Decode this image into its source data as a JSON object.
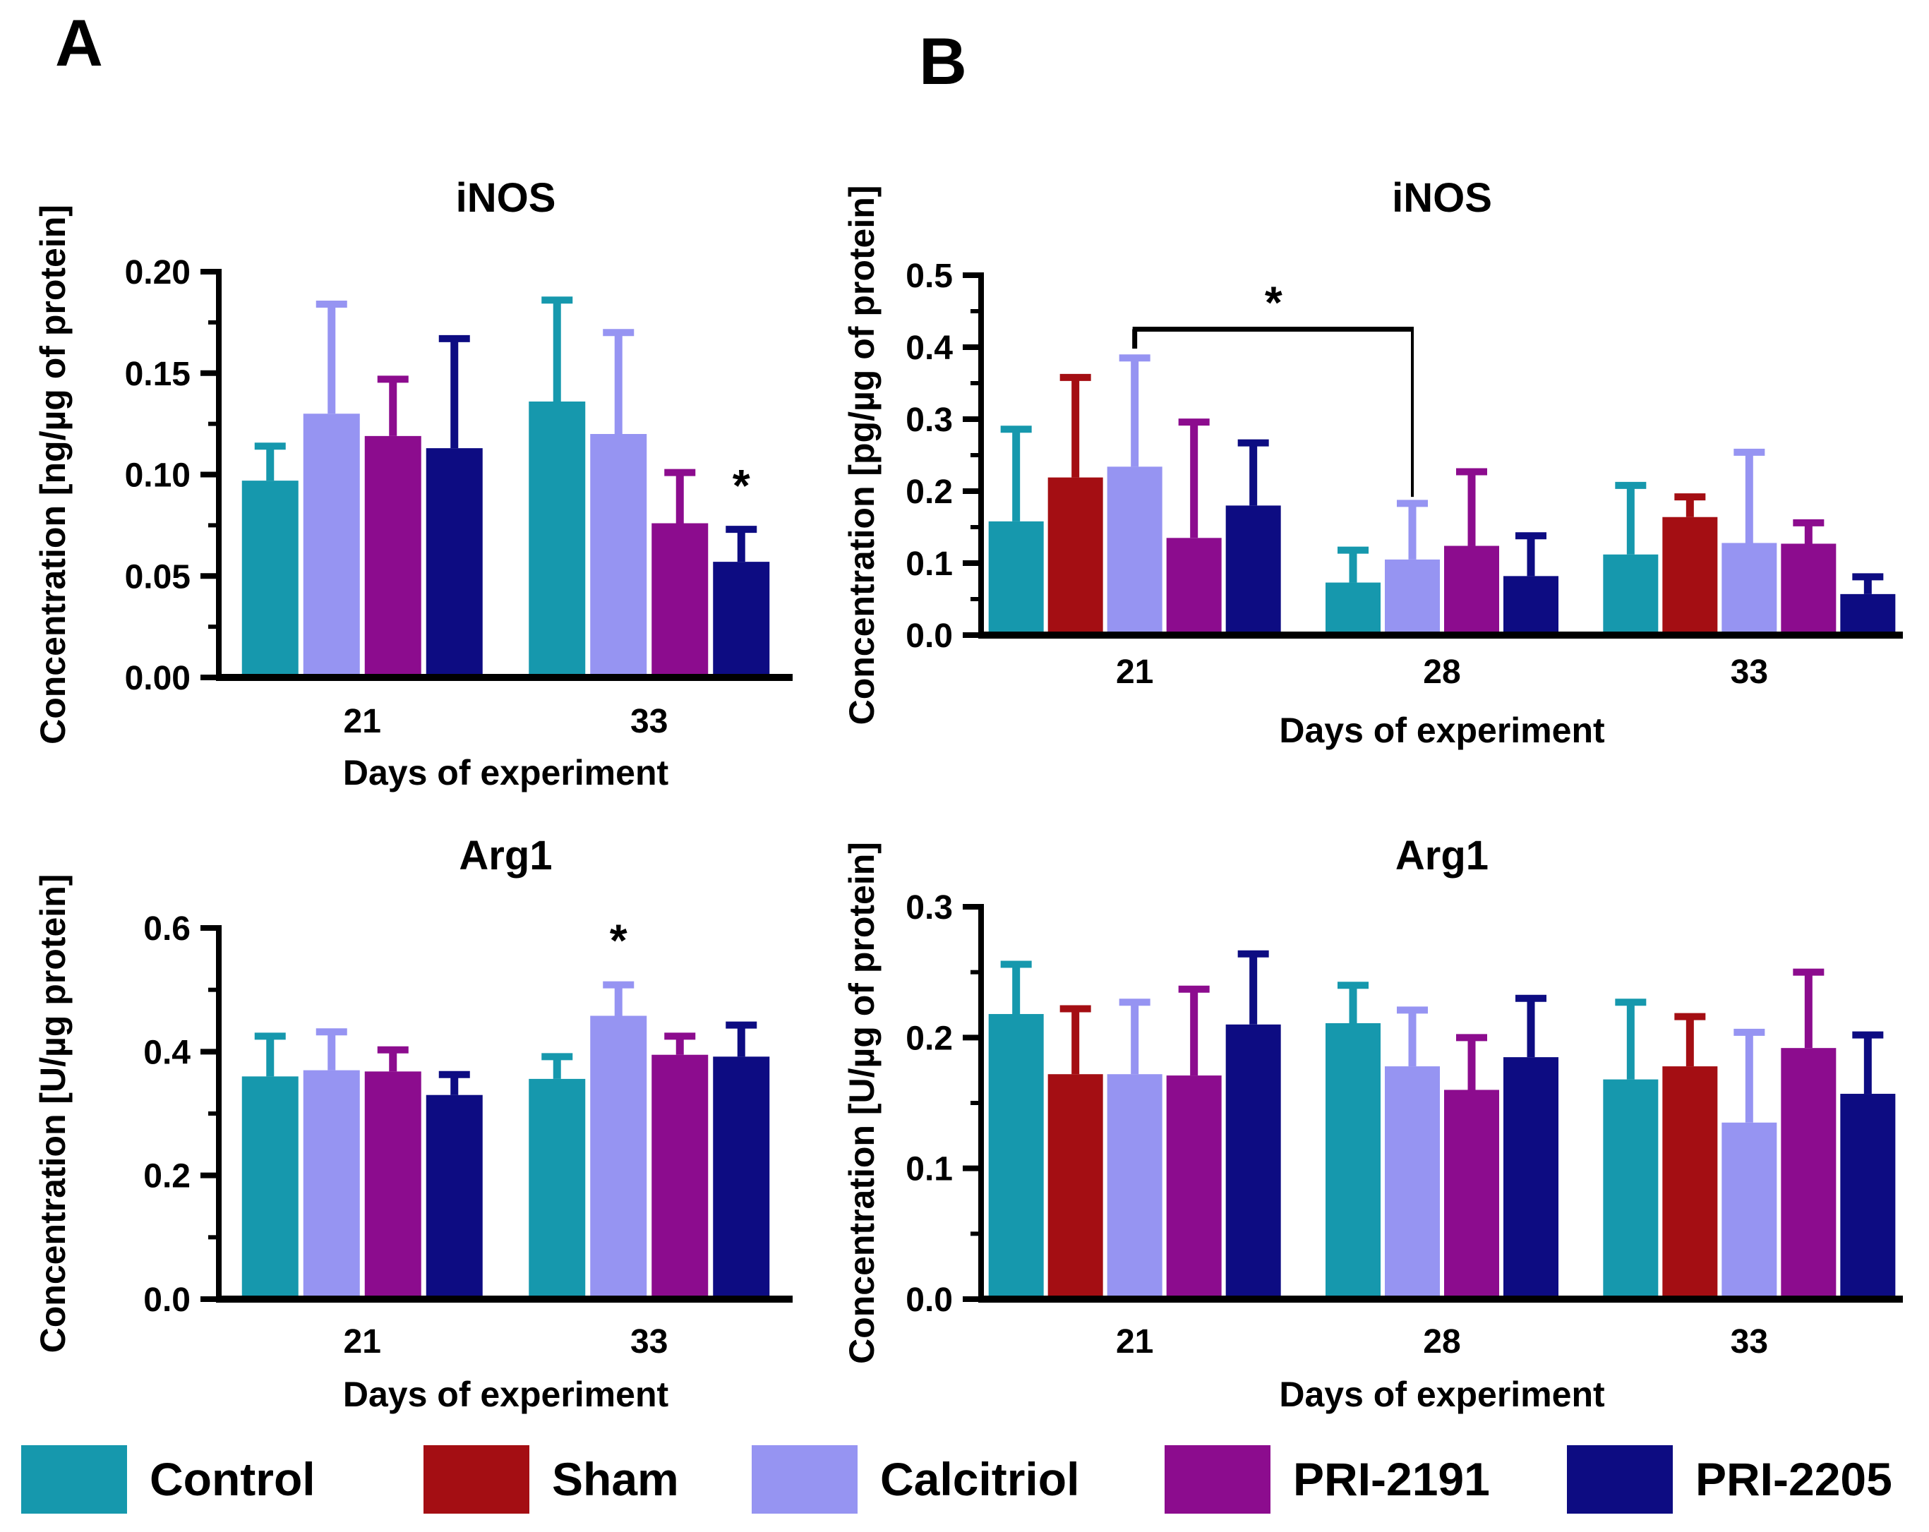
{
  "panel_labels": {
    "a": "A",
    "b": "B"
  },
  "legend": {
    "items": [
      {
        "name": "Control",
        "color": "#1698AD"
      },
      {
        "name": "Sham",
        "color": "#A40E13"
      },
      {
        "name": "Calcitriol",
        "color": "#9694F2"
      },
      {
        "name": "PRI-2191",
        "color": "#8C0C8E"
      },
      {
        "name": "PRI-2205",
        "color": "#0D0C82"
      }
    ]
  },
  "chart_data": [
    {
      "id": "a-inos",
      "panel": "A",
      "type": "bar",
      "title": "iNOS",
      "ylabel": "Concentration [ng/µg of protein]",
      "xlabel": "Days of experiment",
      "categories": [
        "21",
        "33"
      ],
      "ylim": [
        0,
        0.2
      ],
      "yticks": [
        0,
        0.05,
        0.1,
        0.15,
        0.2
      ],
      "ytick_decimals": 2,
      "minor_ticks": true,
      "grid": false,
      "legend_position": "figure-bottom",
      "series": [
        {
          "name": "Control",
          "values": [
            0.097,
            0.136
          ],
          "errors": [
            0.017,
            0.05
          ]
        },
        {
          "name": "Calcitriol",
          "values": [
            0.13,
            0.12
          ],
          "errors": [
            0.054,
            0.05
          ]
        },
        {
          "name": "PRI-2191",
          "values": [
            0.119,
            0.076
          ],
          "errors": [
            0.028,
            0.025
          ]
        },
        {
          "name": "PRI-2205",
          "values": [
            0.113,
            0.057
          ],
          "errors": [
            0.054,
            0.016
          ]
        }
      ],
      "annotations": [
        {
          "type": "star",
          "series": "PRI-2205",
          "category": 1,
          "y": 0.087,
          "label": "*"
        }
      ]
    },
    {
      "id": "b-inos",
      "panel": "B",
      "type": "bar",
      "title": "iNOS",
      "ylabel": "Concentration [pg/µg of protein]",
      "xlabel": "Days of experiment",
      "categories": [
        "21",
        "28",
        "33"
      ],
      "ylim": [
        0,
        0.5
      ],
      "yticks": [
        0,
        0.1,
        0.2,
        0.3,
        0.4,
        0.5
      ],
      "ytick_decimals": 1,
      "minor_ticks": true,
      "grid": false,
      "legend_position": "figure-bottom",
      "series": [
        {
          "name": "Control",
          "values": [
            0.158,
            0.073,
            0.112
          ],
          "errors": [
            0.128,
            0.045,
            0.096
          ]
        },
        {
          "name": "Sham",
          "values": [
            0.219,
            null,
            0.164
          ],
          "errors": [
            0.139,
            null,
            0.028
          ]
        },
        {
          "name": "Calcitriol",
          "values": [
            0.234,
            0.105,
            0.128
          ],
          "errors": [
            0.151,
            0.078,
            0.126
          ]
        },
        {
          "name": "PRI-2191",
          "values": [
            0.135,
            0.124,
            0.127
          ],
          "errors": [
            0.161,
            0.103,
            0.029
          ]
        },
        {
          "name": "PRI-2205",
          "values": [
            0.18,
            0.082,
            0.057
          ],
          "errors": [
            0.087,
            0.056,
            0.024
          ]
        }
      ],
      "annotations": [
        {
          "type": "bracket",
          "series": "Calcitriol",
          "from_category": 0,
          "to_category": 1,
          "y_top": 0.425,
          "y_from_end": 0.398,
          "y_to_end": 0.192,
          "label": "*"
        }
      ]
    },
    {
      "id": "a-arg1",
      "panel": "A",
      "type": "bar",
      "title": "Arg1",
      "ylabel": "Concentration [U/µg protein]",
      "xlabel": "Days of experiment",
      "categories": [
        "21",
        "33"
      ],
      "ylim": [
        0,
        0.6
      ],
      "yticks": [
        0,
        0.2,
        0.4,
        0.6
      ],
      "ytick_decimals": 1,
      "minor_ticks": true,
      "grid": false,
      "legend_position": "figure-bottom",
      "series": [
        {
          "name": "Control",
          "values": [
            0.36,
            0.356
          ],
          "errors": [
            0.065,
            0.036
          ]
        },
        {
          "name": "Calcitriol",
          "values": [
            0.37,
            0.458
          ],
          "errors": [
            0.062,
            0.05
          ]
        },
        {
          "name": "PRI-2191",
          "values": [
            0.368,
            0.395
          ],
          "errors": [
            0.035,
            0.03
          ]
        },
        {
          "name": "PRI-2205",
          "values": [
            0.33,
            0.392
          ],
          "errors": [
            0.033,
            0.051
          ]
        }
      ],
      "annotations": [
        {
          "type": "star",
          "series": "Calcitriol",
          "category": 1,
          "y": 0.555,
          "label": "*"
        }
      ]
    },
    {
      "id": "b-arg1",
      "panel": "B",
      "type": "bar",
      "title": "Arg1",
      "ylabel": "Concentration [U/µg of protein]",
      "xlabel": "Days of experiment",
      "categories": [
        "21",
        "28",
        "33"
      ],
      "ylim": [
        0,
        0.3
      ],
      "yticks": [
        0,
        0.1,
        0.2,
        0.3
      ],
      "ytick_decimals": 1,
      "minor_ticks": true,
      "grid": false,
      "legend_position": "figure-bottom",
      "series": [
        {
          "name": "Control",
          "values": [
            0.218,
            0.211,
            0.168
          ],
          "errors": [
            0.038,
            0.029,
            0.059
          ]
        },
        {
          "name": "Sham",
          "values": [
            0.172,
            null,
            0.178
          ],
          "errors": [
            0.05,
            null,
            0.038
          ]
        },
        {
          "name": "Calcitriol",
          "values": [
            0.172,
            0.178,
            0.135
          ],
          "errors": [
            0.055,
            0.043,
            0.069
          ]
        },
        {
          "name": "PRI-2191",
          "values": [
            0.171,
            0.16,
            0.192
          ],
          "errors": [
            0.066,
            0.04,
            0.058
          ]
        },
        {
          "name": "PRI-2205",
          "values": [
            0.21,
            0.185,
            0.157
          ],
          "errors": [
            0.054,
            0.045,
            0.045
          ]
        }
      ],
      "annotations": []
    }
  ]
}
